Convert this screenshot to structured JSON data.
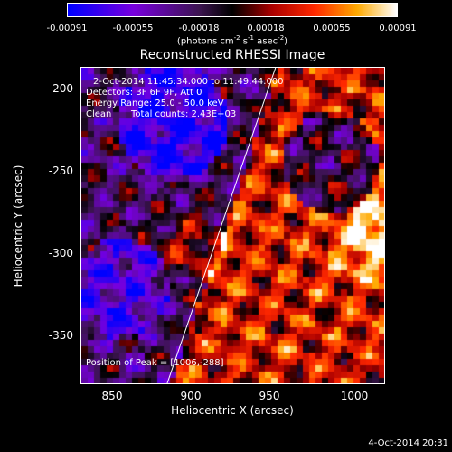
{
  "colors": {
    "background": "#000000",
    "text": "#ffffff",
    "limb_line": "#ffffff"
  },
  "colorbar": {
    "ticks": [
      "-0.00091",
      "-0.00055",
      "-0.00018",
      "0.00018",
      "0.00055",
      "0.00091"
    ],
    "unit_main": "(photons cm",
    "unit_exp1": "-2",
    "unit_mid": " s",
    "unit_exp2": "-1",
    "unit_tail": " asec",
    "unit_exp3": "-2",
    "unit_close": ")",
    "range": [
      -0.00091,
      0.00091
    ],
    "colormap": "blue-purple-black-red-orange-yellow-white"
  },
  "chart_data": {
    "type": "heatmap",
    "title": "Reconstructed RHESSI Image",
    "xlabel": "Heliocentric X (arcsec)",
    "ylabel": "Heliocentric Y (arcsec)",
    "xlim": [
      822,
      1015
    ],
    "ylim": [
      -380,
      -190
    ],
    "x_ticks": [
      850,
      900,
      950,
      1000
    ],
    "y_ticks": [
      -200,
      -250,
      -300,
      -350
    ],
    "x_tick_labels": [
      "850",
      "900",
      "950",
      "1000"
    ],
    "y_tick_labels": [
      "-200",
      "-250",
      "-300",
      "-350"
    ],
    "annotations": {
      "time_range": "2-Oct-2014 11:45:34.000 to 11:49:44.000",
      "detectors": "Detectors: 3F 6F 9F, Att 0",
      "energy_range": "Energy Range: 25.0 - 50.0 keV",
      "method": "Clean",
      "total_counts": "Total counts: 2.43E+03",
      "peak": "Position of Peak = [1006,-288]"
    },
    "limb_line": {
      "x": [
        876,
        945
      ],
      "y": [
        -380,
        -190
      ]
    },
    "peak_position": [
      1006,
      -288
    ]
  },
  "footer": {
    "date": "4-Oct-2014 20:31"
  }
}
